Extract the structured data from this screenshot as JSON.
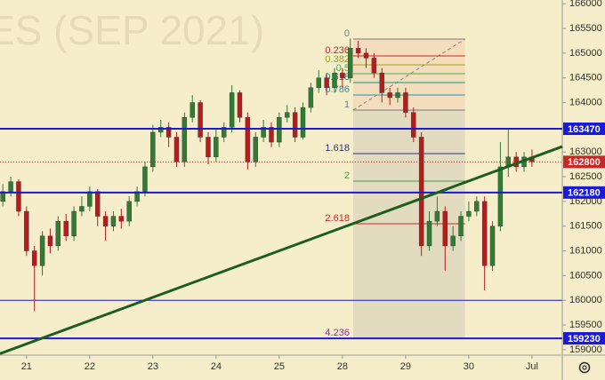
{
  "chart_data": {
    "type": "candlestick",
    "title": "ES (SEP 2021)",
    "xlim": [
      -0.42,
      8.48
    ],
    "xticks": [
      {
        "value": 0,
        "label": "21"
      },
      {
        "value": 1,
        "label": "22"
      },
      {
        "value": 2,
        "label": "23"
      },
      {
        "value": 3,
        "label": "24"
      },
      {
        "value": 4,
        "label": "25"
      },
      {
        "value": 5,
        "label": "28"
      },
      {
        "value": 6,
        "label": "29"
      },
      {
        "value": 7,
        "label": "30"
      },
      {
        "value": 8,
        "label": "Jul"
      }
    ],
    "ylim": [
      158890,
      166075
    ],
    "yticks": [
      159000,
      159500,
      160000,
      160500,
      161000,
      161500,
      162000,
      162500,
      163000,
      163500,
      164000,
      164500,
      165000,
      165500,
      166000
    ],
    "up_color": "#2e7d32",
    "down_color": "#b71c1c",
    "x": [
      -0.375,
      -0.25,
      -0.125,
      0,
      0.125,
      0.25,
      0.375,
      0.5,
      0.625,
      0.75,
      0.875,
      1,
      1.125,
      1.25,
      1.375,
      1.5,
      1.625,
      1.75,
      1.875,
      2,
      2.125,
      2.25,
      2.375,
      2.5,
      2.625,
      2.75,
      2.875,
      3,
      3.125,
      3.25,
      3.375,
      3.5,
      3.625,
      3.75,
      3.875,
      4,
      4.125,
      4.25,
      4.375,
      4.5,
      4.625,
      4.75,
      4.875,
      5,
      5.125,
      5.25,
      5.375,
      5.5,
      5.625,
      5.75,
      5.875,
      6,
      6.125,
      6.25,
      6.375,
      6.5,
      6.625,
      6.75,
      6.875,
      7,
      7.125,
      7.25,
      7.375,
      7.5,
      7.625,
      7.75,
      7.875,
      8
    ],
    "open": [
      162000,
      162200,
      162400,
      161800,
      161000,
      160700,
      161300,
      161100,
      161600,
      161300,
      161800,
      161900,
      162200,
      161700,
      161500,
      161700,
      161600,
      162000,
      162200,
      162700,
      163400,
      163500,
      163300,
      162800,
      163700,
      164000,
      163300,
      162900,
      163300,
      163500,
      164200,
      163700,
      162800,
      163300,
      163500,
      163200,
      163700,
      163800,
      163300,
      163900,
      164300,
      164500,
      164300,
      164600,
      164500,
      165100,
      165000,
      164900,
      164600,
      164200,
      164100,
      164200,
      163800,
      163300,
      161100,
      161600,
      161800,
      161100,
      161300,
      161700,
      161800,
      162000,
      160700,
      161500,
      162700,
      162900,
      162700,
      162900
    ],
    "high": [
      162350,
      162500,
      162450,
      161900,
      161100,
      161400,
      161450,
      161700,
      161750,
      161900,
      162100,
      162300,
      162250,
      161800,
      161800,
      161850,
      162100,
      162300,
      162800,
      163550,
      163650,
      163600,
      163400,
      163800,
      164150,
      164050,
      163400,
      163450,
      163600,
      164350,
      164250,
      163800,
      163400,
      163650,
      163600,
      163800,
      163950,
      163900,
      164000,
      164400,
      164650,
      164600,
      164700,
      164700,
      165300,
      165250,
      165100,
      165000,
      164700,
      164300,
      164300,
      164300,
      163900,
      163400,
      161800,
      162100,
      161900,
      161500,
      161800,
      162000,
      162100,
      162100,
      161600,
      163200,
      163450,
      163000,
      163000,
      163050
    ],
    "low": [
      161900,
      162100,
      161700,
      160900,
      159780,
      160500,
      160950,
      161000,
      161200,
      161200,
      161700,
      161800,
      161500,
      161200,
      161400,
      161450,
      161500,
      161900,
      162100,
      162600,
      163300,
      163100,
      162700,
      162700,
      163600,
      163200,
      162750,
      162800,
      163200,
      163400,
      163600,
      162650,
      162700,
      163200,
      163100,
      163100,
      163600,
      163200,
      163250,
      163800,
      164200,
      164150,
      164200,
      164300,
      164400,
      164900,
      164700,
      164500,
      164000,
      163950,
      164000,
      163700,
      163200,
      160900,
      161000,
      161500,
      160600,
      161000,
      161200,
      161600,
      161700,
      160200,
      160600,
      161400,
      162500,
      162600,
      162600,
      162700
    ],
    "close": [
      162200,
      162400,
      161800,
      161000,
      160700,
      161300,
      161100,
      161600,
      161300,
      161800,
      161900,
      162200,
      161700,
      161500,
      161700,
      161600,
      162000,
      162200,
      162700,
      163400,
      163500,
      163300,
      162800,
      163700,
      164000,
      163300,
      162900,
      163300,
      163500,
      164200,
      163700,
      162800,
      163300,
      163500,
      163200,
      163700,
      163800,
      163300,
      163900,
      164300,
      164500,
      164300,
      164600,
      164500,
      165100,
      165000,
      164900,
      164600,
      164200,
      164100,
      164200,
      163800,
      163300,
      161100,
      161600,
      161800,
      161100,
      161300,
      161700,
      161800,
      162000,
      160700,
      161500,
      162700,
      162900,
      162700,
      162900,
      162800
    ],
    "price_levels": [
      163470,
      162180,
      159230
    ],
    "level_color": "#1a1ad6",
    "support_line": 160000,
    "last_price": 162800,
    "last_price_color": "#c62828",
    "trendline": {
      "x": [
        -0.42,
        8.48
      ],
      "y": [
        158920,
        163110
      ],
      "color": "#1b5e20"
    },
    "fib": {
      "x": [
        5.17,
        6.94
      ],
      "levels": [
        {
          "level": 0,
          "price": 165285,
          "color": "#787878"
        },
        {
          "level": 0.236,
          "price": 164944,
          "color": "#c62828"
        },
        {
          "level": 0.382,
          "price": 164764,
          "color": "#9aa60a"
        },
        {
          "level": 0.5,
          "price": 164584,
          "color": "#4caf50"
        },
        {
          "level": 0.618,
          "price": 164405,
          "color": "#089981"
        },
        {
          "level": 0.786,
          "price": 164153,
          "color": "#2196a3"
        },
        {
          "level": 1,
          "price": 163848,
          "color": "#787878"
        },
        {
          "level": 1.618,
          "price": 162967,
          "color": "#283593"
        },
        {
          "level": 2,
          "price": 162410,
          "color": "#43a047"
        },
        {
          "level": 2.618,
          "price": 161548,
          "color": "#c62828"
        },
        {
          "level": 4.236,
          "price": 159230,
          "color": "#9c27b0"
        }
      ]
    }
  }
}
